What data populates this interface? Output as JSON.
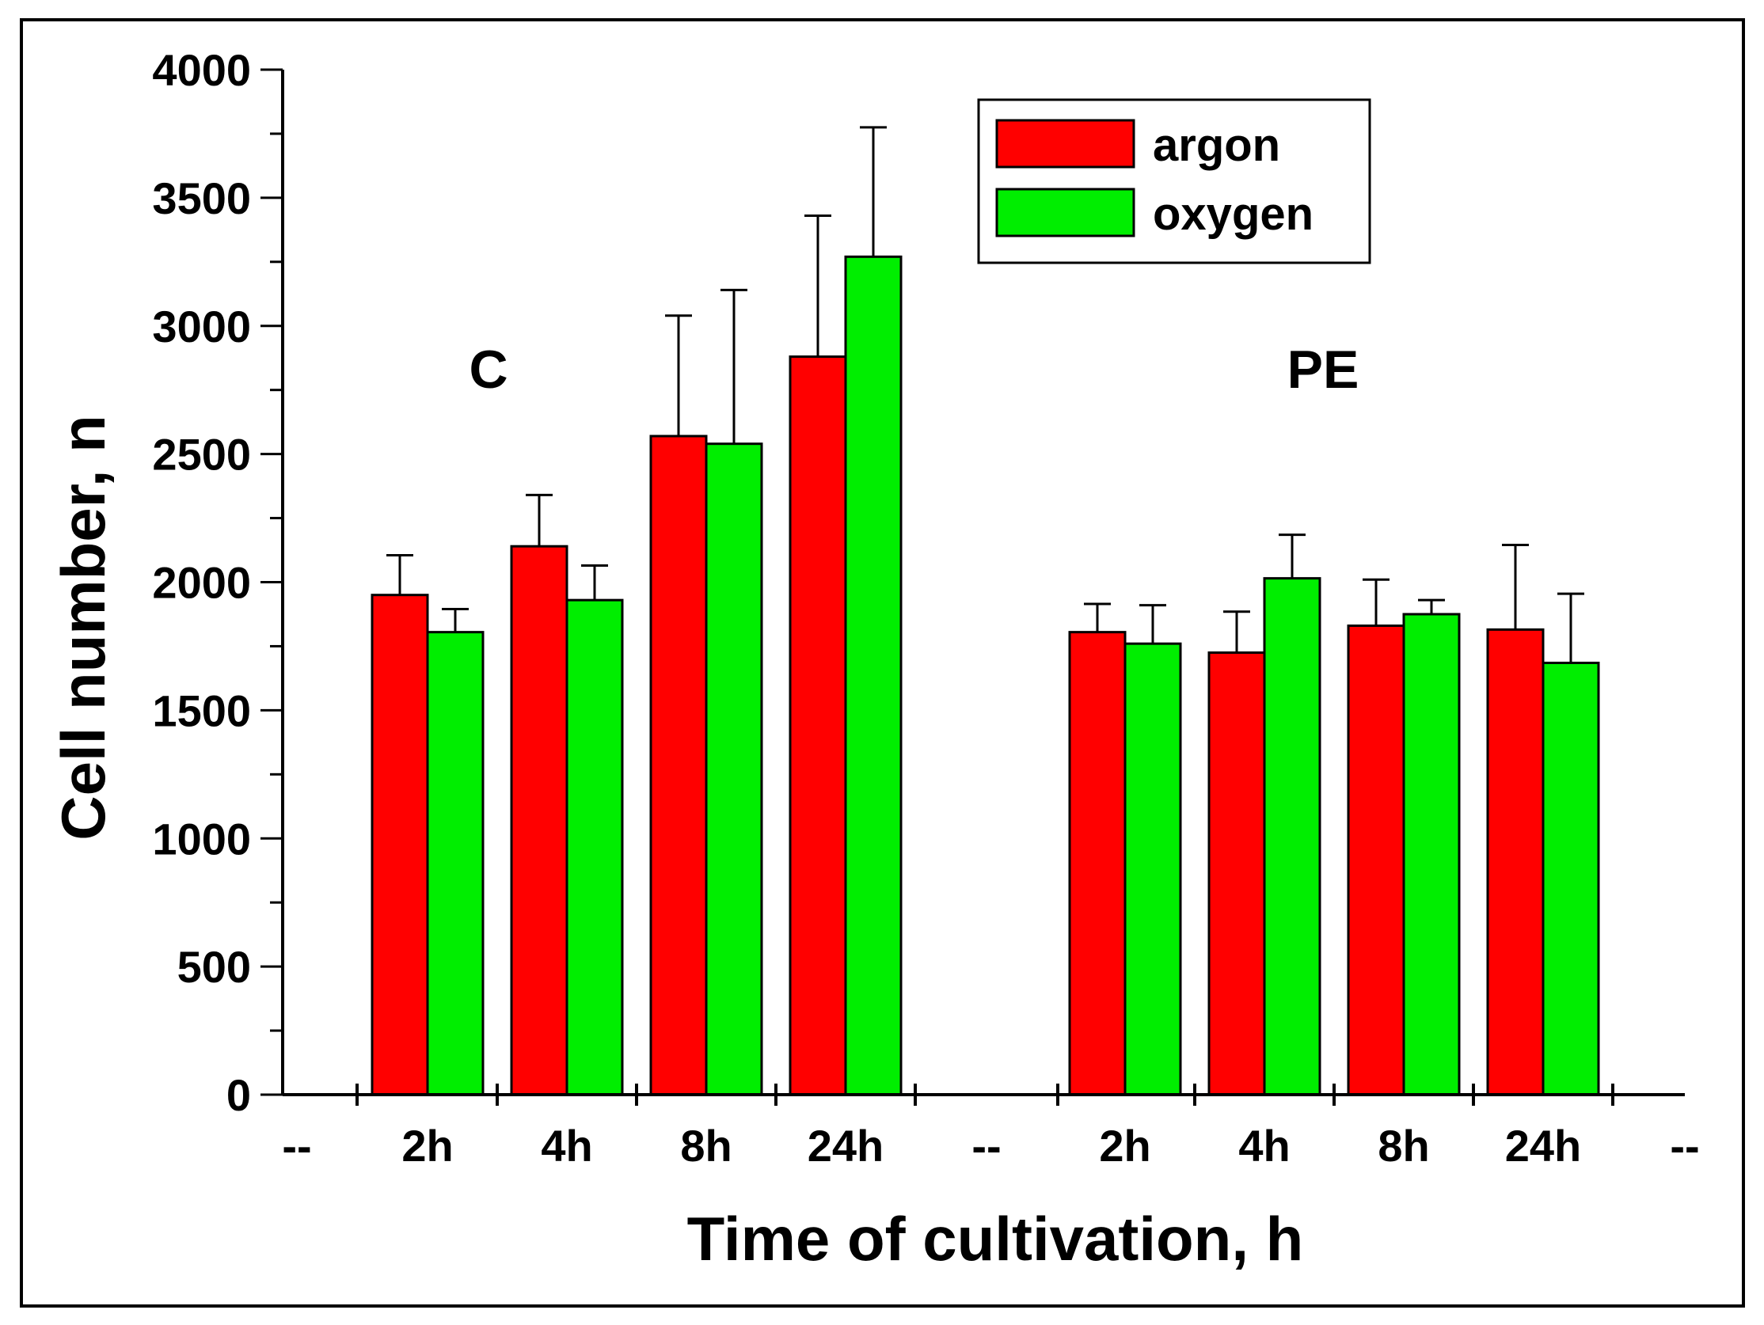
{
  "chart_data": {
    "type": "bar",
    "title": "",
    "xlabel": "Time of cultivation, h",
    "ylabel": "Cell number, n",
    "ylim": [
      0,
      4000
    ],
    "yticks": [
      0,
      500,
      1000,
      1500,
      2000,
      2500,
      3000,
      3500,
      4000
    ],
    "x_tick_labels": [
      "--",
      "2h",
      "4h",
      "8h",
      "24h",
      "--",
      "2h",
      "4h",
      "8h",
      "24h",
      "--"
    ],
    "groups": [
      {
        "name": "C",
        "categories": [
          "2h",
          "4h",
          "8h",
          "24h"
        ]
      },
      {
        "name": "PE",
        "categories": [
          "2h",
          "4h",
          "8h",
          "24h"
        ]
      }
    ],
    "series": [
      {
        "name": "argon",
        "color": "#ff0000",
        "values": [
          1950,
          2140,
          2570,
          2880,
          1805,
          1725,
          1830,
          1815
        ],
        "errors": [
          155,
          200,
          470,
          550,
          110,
          160,
          180,
          330
        ]
      },
      {
        "name": "oxygen",
        "color": "#00ee00",
        "values": [
          1805,
          1930,
          2540,
          3270,
          1760,
          2015,
          1875,
          1685
        ],
        "errors": [
          90,
          135,
          600,
          505,
          150,
          170,
          55,
          270
        ]
      }
    ],
    "legend": {
      "position": "top-right",
      "entries": [
        "argon",
        "oxygen"
      ]
    },
    "grid": false
  }
}
